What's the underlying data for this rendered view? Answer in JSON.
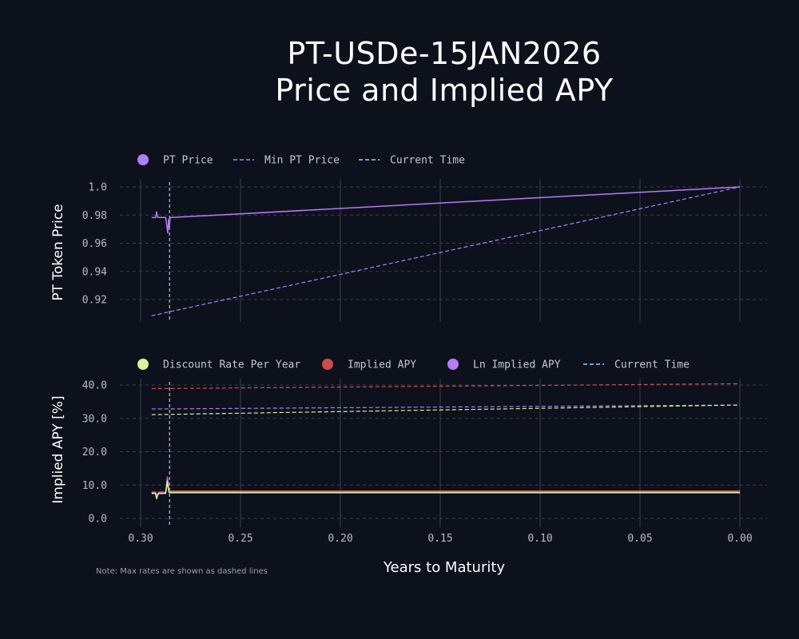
{
  "title_line1": "PT-USDe-15JAN2026",
  "title_line2": "Price and Implied APY",
  "note": "Note: Max rates are shown as dashed lines",
  "xlabel": "Years to Maturity",
  "colors": {
    "background": "#0d111c",
    "purple": "#b57cf6",
    "green": "#d4f59a",
    "red": "#cd4b4b",
    "current_time": "#a9c8ff",
    "grid_vertical": "#3a3f4b",
    "grid_horizontal": "#3a3f4b"
  },
  "chart_data": [
    {
      "type": "line",
      "title": "",
      "ylabel": "PT Token Price",
      "xlabel": "Years to Maturity",
      "x_reversed": true,
      "xlim": [
        0.3,
        0.0
      ],
      "x_ticks": [
        "0.30",
        "0.25",
        "0.20",
        "0.15",
        "0.10",
        "0.05",
        "0.00"
      ],
      "x_tick_values": [
        0.3,
        0.25,
        0.2,
        0.15,
        0.1,
        0.05,
        0.0
      ],
      "ylim": [
        0.9085,
        1.003
      ],
      "y_ticks": [
        "0.92",
        "0.94",
        "0.96",
        "0.98",
        "1.0"
      ],
      "y_tick_values": [
        0.92,
        0.94,
        0.96,
        0.98,
        1.0
      ],
      "grid": "horizontal dashed, vertical solid",
      "legend_position": "top-left",
      "legend": [
        {
          "label": "PT Price",
          "marker": "dot",
          "color": "#b57cf6"
        },
        {
          "label": "Min PT Price",
          "marker": "dash",
          "color": "#b57cf6"
        },
        {
          "label": "Current Time",
          "marker": "dash",
          "color": "#a9c8ff"
        }
      ],
      "current_time": 0.2855,
      "series": [
        {
          "name": "PT Price",
          "style": "solid",
          "color": "#b57cf6",
          "x": [
            0.2945,
            0.2925,
            0.2922,
            0.292,
            0.2918,
            0.2915,
            0.2912,
            0.2875,
            0.2872,
            0.287,
            0.2868,
            0.2866,
            0.2864,
            0.2862,
            0.286,
            0.2858,
            0.2856,
            0.2854,
            0.2852,
            0.0
          ],
          "y": [
            0.9782,
            0.9782,
            0.9803,
            0.9823,
            0.9803,
            0.9786,
            0.9783,
            0.9783,
            0.976,
            0.9735,
            0.9718,
            0.9695,
            0.9673,
            0.9725,
            0.977,
            0.9745,
            0.9705,
            0.975,
            0.9782,
            1.0
          ]
        },
        {
          "name": "Min PT Price",
          "style": "dashed",
          "color": "#b57cf6",
          "x": [
            0.2945,
            0.0
          ],
          "y": [
            0.9085,
            1.0
          ]
        }
      ]
    },
    {
      "type": "line",
      "title": "",
      "ylabel": "Implied APY [%]",
      "xlabel": "Years to Maturity",
      "x_reversed": true,
      "xlim": [
        0.3,
        0.0
      ],
      "x_ticks": [
        "0.30",
        "0.25",
        "0.20",
        "0.15",
        "0.10",
        "0.05",
        "0.00"
      ],
      "x_tick_values": [
        0.3,
        0.25,
        0.2,
        0.15,
        0.1,
        0.05,
        0.0
      ],
      "ylim": [
        0.0,
        42.0
      ],
      "y_ticks": [
        "0.0",
        "10.0",
        "20.0",
        "30.0",
        "40.0"
      ],
      "y_tick_values": [
        0.0,
        10.0,
        20.0,
        30.0,
        40.0
      ],
      "grid": "horizontal dashed, vertical solid",
      "legend_position": "top-left",
      "legend": [
        {
          "label": "Discount Rate Per Year",
          "marker": "dot",
          "color": "#d4f59a"
        },
        {
          "label": "Implied APY",
          "marker": "dot",
          "color": "#cd4b4b"
        },
        {
          "label": "Ln Implied APY",
          "marker": "dot",
          "color": "#b57cf6"
        },
        {
          "label": "Current Time",
          "marker": "dash",
          "color": "#a9c8ff"
        }
      ],
      "current_time": 0.2855,
      "series": [
        {
          "name": "Implied APY",
          "style": "solid",
          "color": "#cd4b4b",
          "x": [
            0.2945,
            0.2925,
            0.292,
            0.2915,
            0.291,
            0.2875,
            0.287,
            0.2866,
            0.2862,
            0.2858,
            0.2855,
            0.0
          ],
          "y": [
            7.9,
            7.9,
            6.5,
            7.3,
            7.9,
            7.9,
            10.0,
            12.5,
            10.2,
            8.4,
            8.2,
            8.2
          ]
        },
        {
          "name": "Ln Implied APY",
          "style": "solid",
          "color": "#b57cf6",
          "x": [
            0.2945,
            0.2925,
            0.292,
            0.2915,
            0.291,
            0.2875,
            0.287,
            0.2866,
            0.2862,
            0.2858,
            0.2855,
            0.0
          ],
          "y": [
            7.6,
            7.6,
            6.3,
            7.0,
            7.6,
            7.6,
            9.6,
            12.0,
            9.8,
            8.0,
            7.9,
            7.9
          ]
        },
        {
          "name": "Discount Rate Per Year",
          "style": "solid",
          "color": "#d4f59a",
          "x": [
            0.2945,
            0.2925,
            0.292,
            0.2915,
            0.291,
            0.2875,
            0.287,
            0.2866,
            0.2862,
            0.2858,
            0.2855,
            0.0
          ],
          "y": [
            7.5,
            7.5,
            5.9,
            6.9,
            7.5,
            7.5,
            9.3,
            11.2,
            9.4,
            7.8,
            7.7,
            7.7
          ]
        },
        {
          "name": "Max Implied APY",
          "style": "dashed",
          "color": "#cd4b4b",
          "x": [
            0.2945,
            0.0
          ],
          "y": [
            38.9,
            40.4
          ]
        },
        {
          "name": "Max Ln Implied APY",
          "style": "dashed",
          "color": "#b57cf6",
          "x": [
            0.2945,
            0.0
          ],
          "y": [
            32.8,
            34.0
          ]
        },
        {
          "name": "Max Discount Rate Per Year",
          "style": "dashed",
          "color": "#d4f59a",
          "x": [
            0.2945,
            0.0
          ],
          "y": [
            31.1,
            34.0
          ]
        }
      ]
    }
  ]
}
